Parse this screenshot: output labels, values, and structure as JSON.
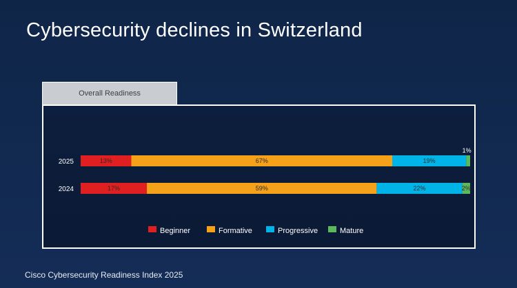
{
  "title": "Cybersecurity declines in Switzerland",
  "tab_label": "Overall Readiness",
  "footer": "Cisco Cybersecurity Readiness Index 2025",
  "colors": {
    "Beginner": "#e02020",
    "Formative": "#f5a21a",
    "Progressive": "#00b4e8",
    "Mature": "#5cb85c"
  },
  "chart_data": {
    "type": "bar",
    "orientation": "horizontal",
    "stacked": true,
    "title": "Overall Readiness",
    "categories": [
      "2025",
      "2024"
    ],
    "series": [
      {
        "name": "Beginner",
        "values": [
          13,
          17
        ],
        "labels": [
          "13%",
          "17%"
        ]
      },
      {
        "name": "Formative",
        "values": [
          67,
          59
        ],
        "labels": [
          "67%",
          "59%"
        ]
      },
      {
        "name": "Progressive",
        "values": [
          19,
          22
        ],
        "labels": [
          "19%",
          "22%"
        ]
      },
      {
        "name": "Mature",
        "values": [
          1,
          2
        ],
        "labels": [
          "1%",
          "2%"
        ]
      }
    ],
    "xlim": [
      0,
      100
    ],
    "legend": "bottom"
  }
}
